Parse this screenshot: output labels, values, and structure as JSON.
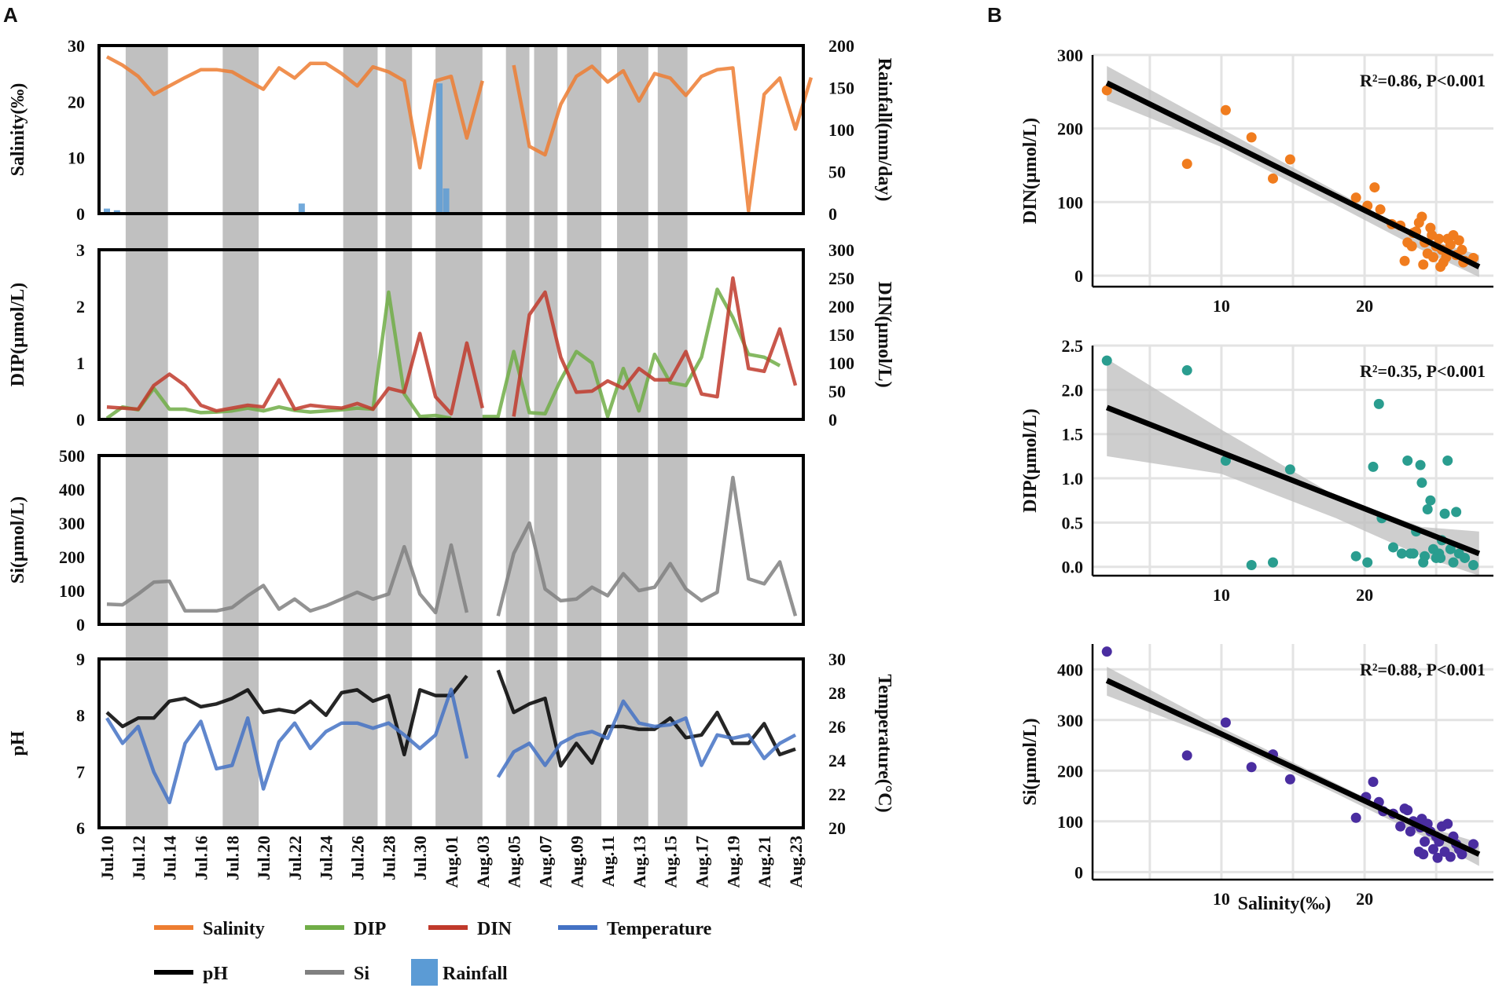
{
  "panel_labels": {
    "a": "A",
    "b": "B"
  },
  "legend": [
    {
      "label": "Salinity",
      "color": "#ED7D31",
      "kind": "line"
    },
    {
      "label": "DIP",
      "color": "#70AD47",
      "kind": "line"
    },
    {
      "label": "DIN",
      "color": "#C0392B",
      "kind": "line"
    },
    {
      "label": "Temperature",
      "color": "#4472C4",
      "kind": "line"
    },
    {
      "label": "pH",
      "color": "#000000",
      "kind": "line"
    },
    {
      "label": "Si",
      "color": "#808080",
      "kind": "line"
    },
    {
      "label": "Rainfall",
      "color": "#5B9BD5",
      "kind": "bar"
    }
  ],
  "chart_data": [
    {
      "type": "line",
      "id": "A1",
      "title": "",
      "xlabel": "",
      "ylabel": "Salinity(‰)",
      "ylim": [
        0,
        30
      ],
      "yticks": [
        0,
        10,
        20,
        30
      ],
      "y2label": "Rainfall(mm/day)",
      "y2lim": [
        0,
        200
      ],
      "y2ticks": [
        0,
        50,
        100,
        150,
        200
      ],
      "series": [
        {
          "name": "Salinity",
          "axis": "left",
          "color": "#ED7D31",
          "values": [
            28,
            26.5,
            24.5,
            21.3,
            22.8,
            24.3,
            25.7,
            25.7,
            25.3,
            23.7,
            22.2,
            26,
            24.2,
            26.8,
            26.8,
            25,
            22.8,
            26.2,
            25.3,
            23.7,
            8.2,
            23.7,
            24.5,
            13.5,
            23.7,
            null,
            26.5,
            12,
            10.5,
            19.5,
            24.5,
            26.3,
            23.5,
            25.5,
            20.1,
            25,
            24.2,
            21.1,
            24.5,
            25.7,
            26,
            0.5,
            21.3,
            24.2,
            15.1,
            24.3
          ]
        },
        {
          "name": "Rainfall",
          "axis": "right",
          "type": "bar",
          "color": "#5B9BD5",
          "values": [
            6,
            0,
            0,
            4,
            0,
            0,
            0,
            0,
            0,
            0,
            0,
            0,
            0,
            0,
            0,
            0,
            0,
            0,
            0,
            0,
            0,
            0,
            0,
            0,
            0,
            0,
            0,
            0,
            0,
            0,
            0,
            0,
            0,
            0,
            0,
            0,
            0,
            0,
            0,
            0,
            0,
            0,
            0,
            0,
            0,
            0,
            0,
            0,
            0,
            0,
            0,
            0,
            0,
            0,
            0,
            0,
            0,
            0,
            12,
            0,
            0,
            0,
            0,
            0,
            0,
            0,
            0,
            0,
            0,
            0,
            0,
            0,
            0,
            0,
            0,
            0,
            0,
            0,
            0,
            0,
            0,
            0,
            0,
            0,
            0,
            0,
            0,
            0,
            0,
            0,
            0,
            0,
            0,
            0,
            0,
            0,
            0,
            0,
            0,
            155,
            0,
            30,
            0,
            0,
            0,
            0,
            0,
            0,
            0,
            0,
            0,
            0,
            0,
            0,
            0,
            0,
            0,
            0,
            0,
            0,
            0,
            0,
            0,
            0,
            0,
            0,
            0,
            0,
            0,
            0,
            0,
            0,
            0,
            0,
            0,
            0,
            0,
            0,
            0,
            0,
            0,
            0,
            0,
            0,
            0,
            0,
            0,
            0,
            0,
            0,
            0,
            0,
            0,
            0,
            0,
            0,
            0,
            0,
            0,
            0,
            0,
            0,
            0,
            0,
            0,
            0,
            0,
            0,
            0,
            0,
            0,
            0,
            0,
            0,
            0,
            0,
            0,
            0,
            0,
            0,
            0,
            0,
            0,
            0,
            0,
            0,
            0,
            0,
            0,
            0,
            0,
            0,
            0,
            0,
            0,
            0,
            0,
            0,
            0,
            0,
            0,
            0,
            0,
            0,
            0,
            0
          ]
        }
      ]
    },
    {
      "type": "line",
      "id": "A2",
      "ylabel": "DIP(µmol/L)",
      "ylim": [
        0,
        3
      ],
      "yticks": [
        0,
        1,
        2,
        3
      ],
      "y2label": "DIN(µmol/L)",
      "y2lim": [
        0,
        300
      ],
      "y2ticks": [
        0,
        50,
        100,
        150,
        200,
        250,
        300
      ],
      "series": [
        {
          "name": "DIP",
          "axis": "left",
          "color": "#70AD47",
          "values": [
            0.02,
            0.22,
            0.17,
            0.55,
            0.18,
            0.18,
            0.12,
            0.13,
            0.15,
            0.2,
            0.15,
            0.22,
            0.16,
            0.13,
            0.15,
            0.17,
            0.2,
            0.18,
            2.25,
            0.45,
            0.05,
            0.07,
            0.02,
            null,
            0.05,
            0.05,
            1.2,
            0.12,
            0.1,
            0.7,
            1.2,
            1,
            0.05,
            0.9,
            0.15,
            1.15,
            0.65,
            0.6,
            1.1,
            2.3,
            1.8,
            1.15,
            1.1,
            0.95
          ]
        },
        {
          "name": "DIN",
          "axis": "right",
          "color": "#C0392B",
          "values": [
            22,
            20,
            18,
            60,
            80,
            60,
            25,
            15,
            20,
            25,
            22,
            70,
            18,
            25,
            22,
            20,
            28,
            18,
            55,
            48,
            152,
            40,
            10,
            135,
            20,
            null,
            5,
            185,
            225,
            110,
            48,
            50,
            68,
            55,
            90,
            70,
            70,
            120,
            45,
            40,
            250,
            90,
            85,
            160,
            60
          ]
        }
      ]
    },
    {
      "type": "line",
      "id": "A3",
      "ylabel": "Si(µmol/L)",
      "ylim": [
        0,
        500
      ],
      "yticks": [
        0,
        100,
        200,
        300,
        400,
        500
      ],
      "series": [
        {
          "name": "Si",
          "axis": "left",
          "color": "#808080",
          "values": [
            60,
            58,
            90,
            125,
            128,
            40,
            40,
            40,
            50,
            85,
            115,
            45,
            75,
            40,
            55,
            75,
            95,
            75,
            90,
            230,
            90,
            35,
            235,
            35,
            null,
            25,
            210,
            300,
            105,
            70,
            75,
            110,
            85,
            150,
            100,
            110,
            180,
            105,
            70,
            95,
            435,
            135,
            120,
            185,
            25
          ]
        }
      ]
    },
    {
      "type": "line",
      "id": "A4",
      "ylabel": "pH",
      "ylim": [
        6,
        9
      ],
      "yticks": [
        6,
        7,
        8,
        9
      ],
      "y2label": "Temperature(°C)",
      "y2lim": [
        20,
        30
      ],
      "y2ticks": [
        20,
        22,
        24,
        26,
        28,
        30
      ],
      "xlabel": "",
      "xticks": [
        "Jul.10",
        "Jul.12",
        "Jul.14",
        "Jul.16",
        "Jul.18",
        "Jul.20",
        "Jul.22",
        "Jul.24",
        "Jul.26",
        "Jul.28",
        "Jul.30",
        "Aug.01",
        "Aug.03",
        "Aug.05",
        "Aug.07",
        "Aug.09",
        "Aug.11",
        "Aug.13",
        "Aug.15",
        "Aug.17",
        "Aug.19",
        "Aug.21",
        "Aug.23"
      ],
      "series": [
        {
          "name": "pH",
          "axis": "left",
          "color": "#000000",
          "values": [
            8.05,
            7.8,
            7.95,
            7.95,
            8.25,
            8.3,
            8.15,
            8.2,
            8.3,
            8.45,
            8.05,
            8.1,
            8.05,
            8.25,
            8,
            8.4,
            8.45,
            8.25,
            8.35,
            7.3,
            8.45,
            8.35,
            8.35,
            8.7,
            null,
            8.8,
            8.05,
            8.2,
            8.3,
            7.1,
            7.5,
            7.15,
            7.8,
            7.8,
            7.75,
            7.75,
            7.95,
            7.6,
            7.65,
            8.05,
            7.5,
            7.5,
            7.85,
            7.3,
            7.4
          ]
        },
        {
          "name": "Temperature",
          "axis": "right",
          "color": "#4472C4",
          "values": [
            26.5,
            25,
            26,
            23.3,
            21.5,
            25,
            26.3,
            23.5,
            23.7,
            26.5,
            22.3,
            25.1,
            26.2,
            24.7,
            25.7,
            26.2,
            26.2,
            25.9,
            26.2,
            25.5,
            24.7,
            25.5,
            28.2,
            24.1,
            null,
            23,
            24.5,
            25,
            23.7,
            25,
            25.5,
            25.7,
            25.3,
            27.5,
            26.2,
            26,
            26.1,
            26.5,
            23.7,
            25.5,
            25.3,
            25.5,
            24.1,
            25,
            25.5
          ]
        }
      ]
    },
    {
      "type": "scatter",
      "id": "B1",
      "xlabel": "",
      "ylabel": "DIN(µmol/L)",
      "xlim": [
        1,
        29
      ],
      "ylim": [
        -15,
        300
      ],
      "xticks": [
        10,
        20
      ],
      "yticks": [
        0,
        100,
        200,
        300
      ],
      "annotation": "R²=0.86, P<0.001",
      "color": "#F07C1E",
      "fit": {
        "x": [
          2,
          28
        ],
        "y": [
          262,
          12
        ]
      },
      "ci_band": {
        "x": [
          2,
          10,
          18,
          24,
          28
        ],
        "upper": [
          285,
          200,
          115,
          52,
          28
        ],
        "lower": [
          238,
          175,
          96,
          35,
          -2
        ]
      },
      "points": [
        [
          2,
          252
        ],
        [
          7.6,
          152
        ],
        [
          10.3,
          225
        ],
        [
          12.1,
          188
        ],
        [
          13.6,
          132
        ],
        [
          14.8,
          158
        ],
        [
          19.4,
          106
        ],
        [
          20.7,
          120
        ],
        [
          21.1,
          90
        ],
        [
          20.2,
          95
        ],
        [
          21.9,
          70
        ],
        [
          22.5,
          68
        ],
        [
          23,
          45
        ],
        [
          23.4,
          58
        ],
        [
          23.6,
          60
        ],
        [
          23.8,
          72
        ],
        [
          24,
          80
        ],
        [
          24.2,
          45
        ],
        [
          24.4,
          30
        ],
        [
          24.6,
          65
        ],
        [
          24.8,
          25
        ],
        [
          25,
          40
        ],
        [
          25.2,
          50
        ],
        [
          25.4,
          35
        ],
        [
          25.5,
          18
        ],
        [
          25.7,
          25
        ],
        [
          25.8,
          50
        ],
        [
          26,
          42
        ],
        [
          26.2,
          55
        ],
        [
          26.4,
          28
        ],
        [
          26.6,
          48
        ],
        [
          26.8,
          35
        ],
        [
          27,
          20
        ],
        [
          25.3,
          12
        ],
        [
          24.1,
          15
        ],
        [
          26.9,
          18
        ],
        [
          27.6,
          24
        ],
        [
          22.8,
          20
        ],
        [
          23.3,
          40
        ],
        [
          24.7,
          55
        ]
      ]
    },
    {
      "type": "scatter",
      "id": "B2",
      "ylabel": "DIP(µmol/L)",
      "xlim": [
        1,
        29
      ],
      "ylim": [
        -0.1,
        2.5
      ],
      "xticks": [
        10,
        20
      ],
      "yticks": [
        0.0,
        0.5,
        1.0,
        1.5,
        2.0,
        2.5
      ],
      "ytick_labels": [
        "0.0",
        "0.5",
        "1.0",
        "1.5",
        "2.0",
        "2.5"
      ],
      "annotation": "R²=0.35, P<0.001",
      "color": "#2A9D8F",
      "fit": {
        "x": [
          2,
          28
        ],
        "y": [
          1.8,
          0.15
        ]
      },
      "ci_band": {
        "x": [
          2,
          10,
          18,
          24,
          28
        ],
        "upper": [
          2.35,
          1.55,
          0.8,
          0.45,
          0.4
        ],
        "lower": [
          1.25,
          1.05,
          0.55,
          0.12,
          -0.1
        ]
      },
      "points": [
        [
          2,
          2.33
        ],
        [
          7.6,
          2.22
        ],
        [
          10.3,
          1.2
        ],
        [
          12.1,
          0.02
        ],
        [
          13.6,
          0.05
        ],
        [
          14.8,
          1.1
        ],
        [
          19.4,
          0.12
        ],
        [
          20.2,
          0.05
        ],
        [
          20.6,
          1.13
        ],
        [
          21,
          1.84
        ],
        [
          21.2,
          0.55
        ],
        [
          22,
          0.22
        ],
        [
          22.6,
          0.15
        ],
        [
          23,
          1.2
        ],
        [
          23.4,
          0.15
        ],
        [
          23.6,
          0.4
        ],
        [
          23.9,
          1.15
        ],
        [
          24,
          0.95
        ],
        [
          24.2,
          0.12
        ],
        [
          24.4,
          0.65
        ],
        [
          24.6,
          0.75
        ],
        [
          24.8,
          0.2
        ],
        [
          25,
          0.1
        ],
        [
          25.2,
          0.15
        ],
        [
          25.4,
          0.3
        ],
        [
          25.6,
          0.6
        ],
        [
          25.8,
          1.2
        ],
        [
          26,
          0.2
        ],
        [
          26.2,
          0.05
        ],
        [
          26.4,
          0.62
        ],
        [
          26.6,
          0.15
        ],
        [
          27,
          0.1
        ],
        [
          27.6,
          0.02
        ],
        [
          24.1,
          0.05
        ],
        [
          25.3,
          0.1
        ],
        [
          23.2,
          0.15
        ]
      ]
    },
    {
      "type": "scatter",
      "id": "B3",
      "xlabel": "Salinity(‰)",
      "ylabel": "Si(µmol/L)",
      "xlim": [
        1,
        29
      ],
      "ylim": [
        -15,
        450
      ],
      "xticks": [
        10,
        20
      ],
      "yticks": [
        0,
        100,
        200,
        300,
        400
      ],
      "annotation": "R²=0.88, P<0.001",
      "color": "#4A2DA0",
      "fit": {
        "x": [
          2,
          28
        ],
        "y": [
          378,
          35
        ]
      },
      "ci_band": {
        "x": [
          2,
          10,
          18,
          24,
          28
        ],
        "upper": [
          405,
          285,
          175,
          92,
          58
        ],
        "lower": [
          348,
          262,
          155,
          72,
          12
        ]
      },
      "points": [
        [
          2,
          435
        ],
        [
          7.6,
          230
        ],
        [
          10.3,
          295
        ],
        [
          12.1,
          207
        ],
        [
          13.6,
          232
        ],
        [
          14.8,
          183
        ],
        [
          19.4,
          107
        ],
        [
          20.1,
          148
        ],
        [
          20.6,
          178
        ],
        [
          21,
          138
        ],
        [
          21.3,
          120
        ],
        [
          22,
          115
        ],
        [
          22.5,
          90
        ],
        [
          22.8,
          125
        ],
        [
          23,
          122
        ],
        [
          23.2,
          80
        ],
        [
          23.4,
          100
        ],
        [
          23.6,
          95
        ],
        [
          23.8,
          40
        ],
        [
          24,
          105
        ],
        [
          24.2,
          60
        ],
        [
          24.4,
          95
        ],
        [
          24.6,
          80
        ],
        [
          24.8,
          45
        ],
        [
          25,
          70
        ],
        [
          25.2,
          60
        ],
        [
          25.4,
          90
        ],
        [
          25.6,
          40
        ],
        [
          25.8,
          95
        ],
        [
          26,
          30
        ],
        [
          26.2,
          70
        ],
        [
          26.4,
          55
        ],
        [
          26.6,
          45
        ],
        [
          26.8,
          35
        ],
        [
          27.6,
          55
        ],
        [
          24.1,
          35
        ],
        [
          25.1,
          28
        ],
        [
          23.9,
          88
        ]
      ]
    }
  ]
}
